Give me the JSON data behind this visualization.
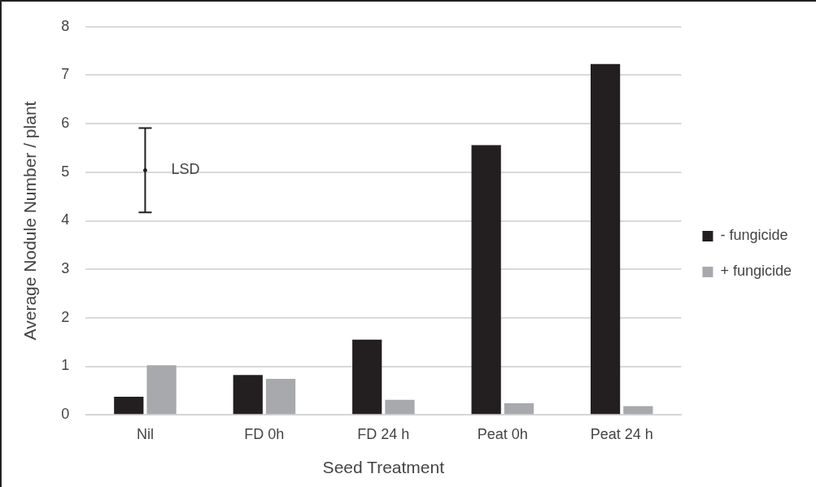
{
  "chart_data": {
    "type": "bar",
    "xlabel": "Seed Treatment",
    "ylabel": "Average Nodule Number / plant",
    "categories": [
      "Nil",
      "FD 0h",
      "FD 24 h",
      "Peat 0h",
      "Peat 24 h"
    ],
    "series": [
      {
        "name": "- fungicide",
        "color": "#231f20",
        "values": [
          0.37,
          0.82,
          1.55,
          5.56,
          7.23
        ]
      },
      {
        "name": "+ fungicide",
        "color": "#a7a9ac",
        "values": [
          1.02,
          0.74,
          0.31,
          0.24,
          0.18
        ]
      },
      {
        "type": "scatter",
        "color": "#231f20",
        "x": [
          "Nil"
        ],
        "values": [
          5.04
        ],
        "errors": [
          0.87
        ],
        "marker": "circle"
      }
    ],
    "annotations": [
      {
        "text": "LSD",
        "x": "Nil",
        "y": 5.04
      }
    ],
    "ylim": [
      0,
      8
    ],
    "yticks": [
      0,
      1,
      2,
      3,
      4,
      5,
      6,
      7,
      8
    ],
    "grid": "y",
    "legend": "right"
  }
}
